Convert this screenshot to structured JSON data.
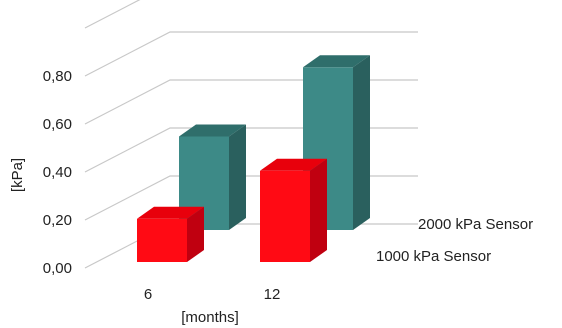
{
  "chart_data": {
    "type": "bar",
    "subtype": "3d-grouped",
    "categories": [
      "6",
      "12"
    ],
    "series": [
      {
        "name": "1000 kPa Sensor",
        "values": [
          0.18,
          0.38
        ],
        "color": "#ff0a14",
        "side_color": "#c00010",
        "top_color": "#e8000c"
      },
      {
        "name": "2000 kPa Sensor",
        "values": [
          0.5,
          0.87
        ],
        "color": "#3d8a87",
        "side_color": "#2a605e",
        "top_color": "#2f6e6b"
      }
    ],
    "xlabel": "[months]",
    "ylabel": "[kPa]",
    "ylim": [
      0,
      1.0
    ],
    "yticks": [
      "0,00",
      "0,20",
      "0,40",
      "0,60",
      "0,80"
    ],
    "yticks_values": [
      0,
      0.2,
      0.4,
      0.6,
      0.8
    ],
    "grid": true,
    "legend": "right"
  }
}
